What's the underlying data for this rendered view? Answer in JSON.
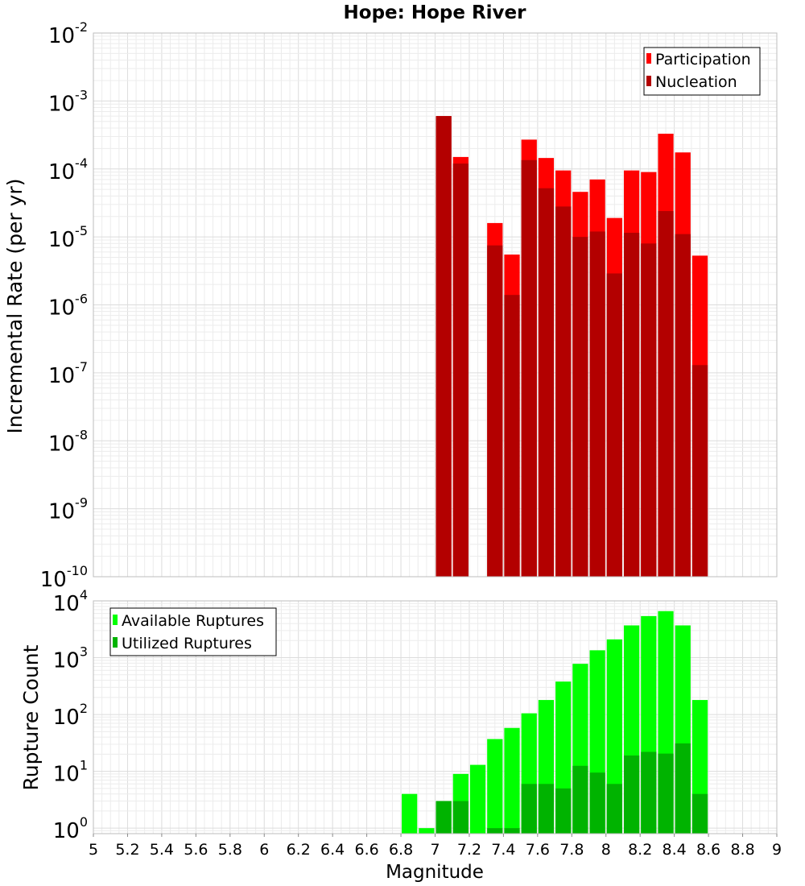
{
  "chart_data": [
    {
      "type": "bar",
      "title": "Hope: Hope River",
      "xlabel": "",
      "ylabel": "Incremental Rate (per yr)",
      "y_scale": "log",
      "xlim": [
        5,
        9
      ],
      "ylim": [
        1e-10,
        0.01
      ],
      "bar_width": 0.1,
      "legend_position": "top-right",
      "x": [
        7.05,
        7.15,
        7.35,
        7.45,
        7.55,
        7.65,
        7.75,
        7.85,
        7.95,
        8.05,
        8.15,
        8.25,
        8.35,
        8.45,
        8.55
      ],
      "series": [
        {
          "name": "Participation",
          "color": "#ff0000",
          "values": [
            0.0006,
            0.00015,
            1.6e-05,
            5.5e-06,
            0.00027,
            0.000145,
            9.5e-05,
            4.6e-05,
            7e-05,
            1.9e-05,
            9.5e-05,
            9e-05,
            0.00033,
            0.000175,
            5.3e-06
          ]
        },
        {
          "name": "Nucleation",
          "color": "#b30000",
          "values": [
            0.0006,
            0.00012,
            7.5e-06,
            1.4e-06,
            0.000135,
            5.2e-05,
            2.8e-05,
            1e-05,
            1.2e-05,
            2.9e-06,
            1.15e-05,
            8e-06,
            2.4e-05,
            1.1e-05,
            1.3e-07
          ]
        }
      ],
      "y_tick_labels": [
        {
          "base": "10",
          "exp": "-10",
          "value": 1e-10
        },
        {
          "base": "10",
          "exp": "-9",
          "value": 1e-09
        },
        {
          "base": "10",
          "exp": "-8",
          "value": 1e-08
        },
        {
          "base": "10",
          "exp": "-7",
          "value": 1e-07
        },
        {
          "base": "10",
          "exp": "-6",
          "value": 1e-06
        },
        {
          "base": "10",
          "exp": "-5",
          "value": 1e-05
        },
        {
          "base": "10",
          "exp": "-4",
          "value": 0.0001
        },
        {
          "base": "10",
          "exp": "-3",
          "value": 0.001
        },
        {
          "base": "10",
          "exp": "-2",
          "value": 0.01
        }
      ]
    },
    {
      "type": "bar",
      "title": "",
      "xlabel": "Magnitude",
      "ylabel": "Rupture Count",
      "y_scale": "log",
      "xlim": [
        5,
        9
      ],
      "ylim": [
        0.8,
        10000
      ],
      "bar_width": 0.1,
      "legend_position": "top-left",
      "x": [
        6.85,
        6.95,
        7.05,
        7.15,
        7.25,
        7.35,
        7.45,
        7.55,
        7.65,
        7.75,
        7.85,
        7.95,
        8.05,
        8.15,
        8.25,
        8.35,
        8.45,
        8.55
      ],
      "series": [
        {
          "name": "Available Ruptures",
          "color": "#00ff00",
          "values": [
            4,
            1,
            3,
            9,
            13,
            37,
            58,
            105,
            180,
            380,
            780,
            1350,
            2100,
            3700,
            5400,
            6600,
            3700,
            180
          ]
        },
        {
          "name": "Utilized Ruptures",
          "color": "#00b300",
          "values": [
            0,
            0,
            3,
            3,
            0,
            1,
            1,
            6,
            6,
            5,
            12.5,
            9.5,
            6,
            19,
            22,
            20.5,
            31,
            4
          ]
        }
      ],
      "y_tick_labels": [
        {
          "base": "10",
          "exp": "0",
          "value": 1
        },
        {
          "base": "10",
          "exp": "1",
          "value": 10
        },
        {
          "base": "10",
          "exp": "2",
          "value": 100
        },
        {
          "base": "10",
          "exp": "3",
          "value": 1000
        },
        {
          "base": "10",
          "exp": "4",
          "value": 10000
        }
      ],
      "x_tick_labels": [
        "5",
        "5.2",
        "5.4",
        "5.6",
        "5.8",
        "6",
        "6.2",
        "6.4",
        "6.6",
        "6.8",
        "7",
        "7.2",
        "7.4",
        "7.6",
        "7.8",
        "8",
        "8.2",
        "8.4",
        "8.6",
        "8.8",
        "9"
      ]
    }
  ]
}
